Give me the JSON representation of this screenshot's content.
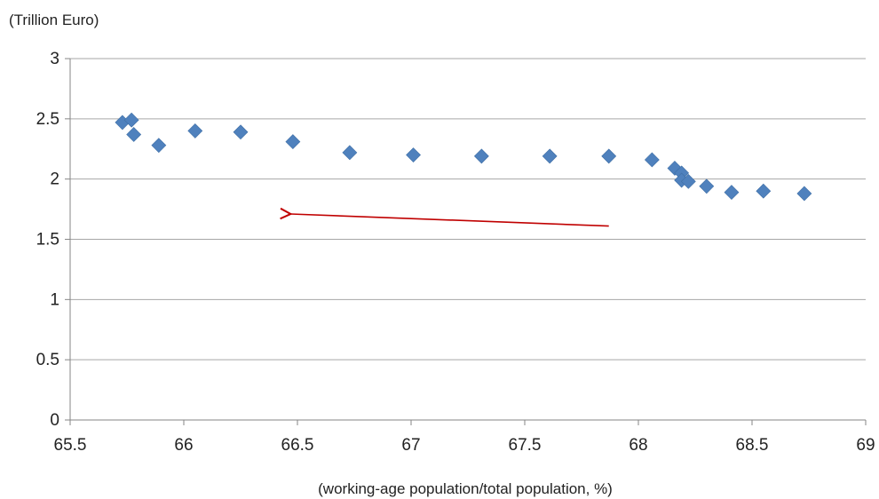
{
  "chart_data": {
    "type": "scatter",
    "ylabel": "(Trillion Euro)",
    "xlabel": "(working-age population/total population, %)",
    "xlim": [
      65.5,
      69
    ],
    "ylim": [
      0,
      3
    ],
    "xticks": [
      "65.5",
      "66",
      "66.5",
      "67",
      "67.5",
      "68",
      "68.5",
      "69"
    ],
    "yticks": [
      "0",
      "0.5",
      "1",
      "1.5",
      "2",
      "2.5",
      "3"
    ],
    "grid": "horizontal",
    "legend": "none",
    "colors": {
      "marker": "#4f81bd",
      "arrow": "#c00000",
      "grid": "#a6a6a6",
      "axis": "#868686"
    },
    "series": [
      {
        "points": [
          [
            65.73,
            2.47
          ],
          [
            65.77,
            2.49
          ],
          [
            65.78,
            2.37
          ],
          [
            65.89,
            2.28
          ],
          [
            66.05,
            2.4
          ],
          [
            66.25,
            2.39
          ],
          [
            66.48,
            2.31
          ],
          [
            66.73,
            2.22
          ],
          [
            67.01,
            2.2
          ],
          [
            67.31,
            2.19
          ],
          [
            67.61,
            2.19
          ],
          [
            67.87,
            2.19
          ],
          [
            68.06,
            2.16
          ],
          [
            68.16,
            2.09
          ],
          [
            68.19,
            2.05
          ],
          [
            68.19,
            1.99
          ],
          [
            68.22,
            1.98
          ],
          [
            68.3,
            1.94
          ],
          [
            68.41,
            1.89
          ],
          [
            68.55,
            1.9
          ],
          [
            68.73,
            1.88
          ]
        ]
      }
    ],
    "annotations": [
      {
        "type": "arrow",
        "from": [
          67.87,
          1.61
        ],
        "to": [
          66.47,
          1.71
        ]
      }
    ]
  }
}
